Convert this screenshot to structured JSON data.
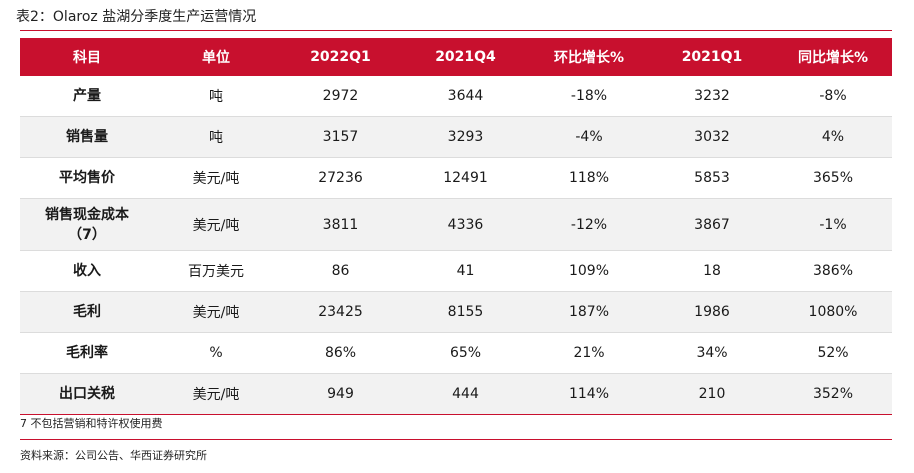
{
  "title": "表2：Olaroz 盐湖分季度生产运营情况",
  "headers": [
    "科目",
    "单位",
    "2022Q1",
    "2021Q4",
    "环比增长%",
    "2021Q1",
    "同比增长%"
  ],
  "rows": [
    {
      "item": "产量",
      "unit": "吨",
      "q2022q1": "2972",
      "q2021q4": "3644",
      "qoq": "-18%",
      "q2021q1": "3232",
      "yoy": "-8%"
    },
    {
      "item": "销售量",
      "unit": "吨",
      "q2022q1": "3157",
      "q2021q4": "3293",
      "qoq": "-4%",
      "q2021q1": "3032",
      "yoy": "4%"
    },
    {
      "item": "平均售价",
      "unit": "美元/吨",
      "q2022q1": "27236",
      "q2021q4": "12491",
      "qoq": "118%",
      "q2021q1": "5853",
      "yoy": "365%"
    },
    {
      "item": "销售现金成本",
      "item_line2": "（7）",
      "unit": "美元/吨",
      "q2022q1": "3811",
      "q2021q4": "4336",
      "qoq": "-12%",
      "q2021q1": "3867",
      "yoy": "-1%"
    },
    {
      "item": "收入",
      "unit": "百万美元",
      "q2022q1": "86",
      "q2021q4": "41",
      "qoq": "109%",
      "q2021q1": "18",
      "yoy": "386%"
    },
    {
      "item": "毛利",
      "unit": "美元/吨",
      "q2022q1": "23425",
      "q2021q4": "8155",
      "qoq": "187%",
      "q2021q1": "1986",
      "yoy": "1080%"
    },
    {
      "item": "毛利率",
      "unit": "%",
      "q2022q1": "86%",
      "q2021q4": "65%",
      "qoq": "21%",
      "q2021q1": "34%",
      "yoy": "52%"
    },
    {
      "item": "出口关税",
      "unit": "美元/吨",
      "q2022q1": "949",
      "q2021q4": "444",
      "qoq": "114%",
      "q2021q1": "210",
      "yoy": "352%"
    }
  ],
  "footnote": "7 不包括营销和特许权使用费",
  "source": "资料来源：公司公告、华西证券研究所",
  "colors": {
    "accent": "#c8102e",
    "alt_row": "#f2f2f2"
  }
}
